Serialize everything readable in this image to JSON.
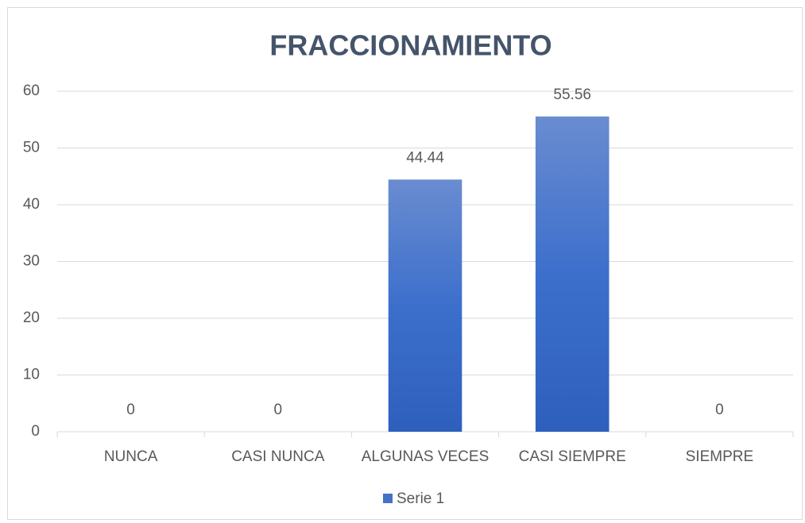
{
  "chart_data": {
    "type": "bar",
    "title": "FRACCIONAMIENTO",
    "categories": [
      "NUNCA",
      "CASI NUNCA",
      "ALGUNAS VECES",
      "CASI SIEMPRE",
      "SIEMPRE"
    ],
    "series": [
      {
        "name": "Serie 1",
        "color": "#4472c4",
        "values": [
          0,
          0,
          44.44,
          55.56,
          0
        ]
      }
    ],
    "ylim": [
      0,
      60
    ],
    "yticks": [
      0,
      10,
      20,
      30,
      40,
      50,
      60
    ],
    "grid": true,
    "legend": "bottom"
  }
}
